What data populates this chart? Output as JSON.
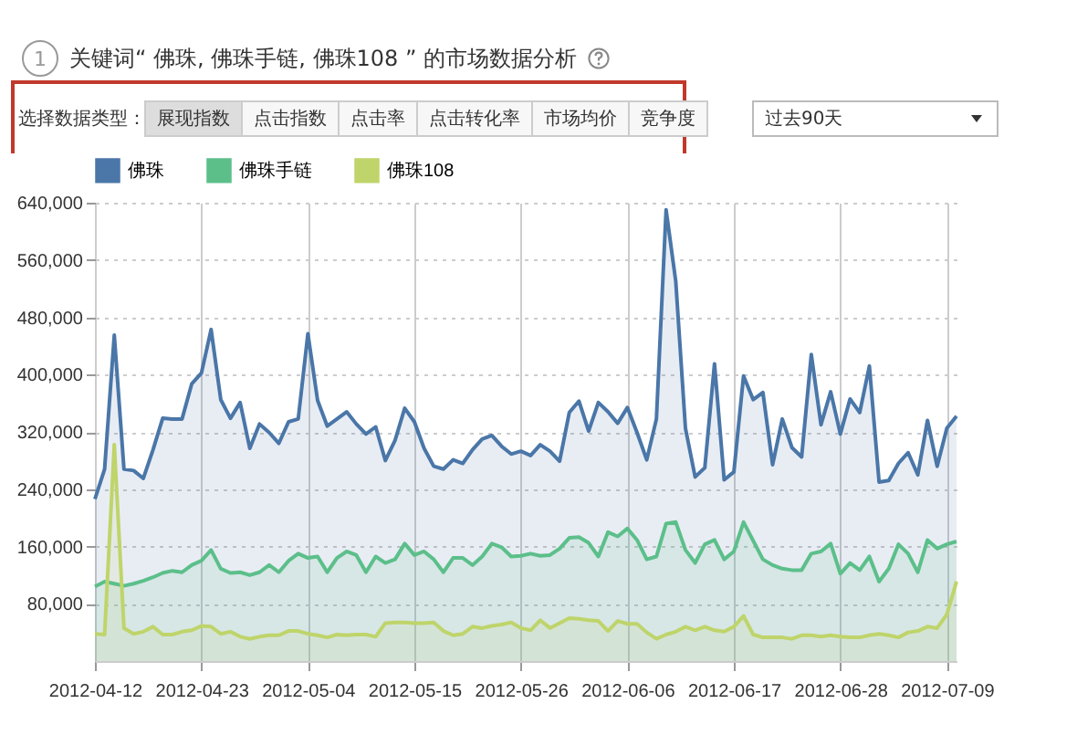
{
  "chart_data": {
    "type": "area",
    "title": "关键词“ 佛珠, 佛珠手链, 佛珠108 ” 的市场数据分析",
    "annotations": [
      "1",
      "选择数据类型：",
      "展现指数",
      "点击指数",
      "点击率",
      "点击转化率",
      "市场均价",
      "竞争度",
      "过去90天"
    ],
    "x": [
      "2012-04-12",
      "2012-04-13",
      "2012-04-14",
      "2012-04-15",
      "2012-04-16",
      "2012-04-17",
      "2012-04-18",
      "2012-04-19",
      "2012-04-20",
      "2012-04-21",
      "2012-04-22",
      "2012-04-23",
      "2012-04-24",
      "2012-04-25",
      "2012-04-26",
      "2012-04-27",
      "2012-04-28",
      "2012-04-29",
      "2012-04-30",
      "2012-05-01",
      "2012-05-02",
      "2012-05-03",
      "2012-05-04",
      "2012-05-05",
      "2012-05-06",
      "2012-05-07",
      "2012-05-08",
      "2012-05-09",
      "2012-05-10",
      "2012-05-11",
      "2012-05-12",
      "2012-05-13",
      "2012-05-14",
      "2012-05-15",
      "2012-05-16",
      "2012-05-17",
      "2012-05-18",
      "2012-05-19",
      "2012-05-20",
      "2012-05-21",
      "2012-05-22",
      "2012-05-23",
      "2012-05-24",
      "2012-05-25",
      "2012-05-26",
      "2012-05-27",
      "2012-05-28",
      "2012-05-29",
      "2012-05-30",
      "2012-05-31",
      "2012-06-01",
      "2012-06-02",
      "2012-06-03",
      "2012-06-04",
      "2012-06-05",
      "2012-06-06",
      "2012-06-07",
      "2012-06-08",
      "2012-06-09",
      "2012-06-10",
      "2012-06-11",
      "2012-06-12",
      "2012-06-13",
      "2012-06-14",
      "2012-06-15",
      "2012-06-16",
      "2012-06-17",
      "2012-06-18",
      "2012-06-19",
      "2012-06-20",
      "2012-06-21",
      "2012-06-22",
      "2012-06-23",
      "2012-06-24",
      "2012-06-25",
      "2012-06-26",
      "2012-06-27",
      "2012-06-28",
      "2012-06-29",
      "2012-06-30",
      "2012-07-01",
      "2012-07-02",
      "2012-07-03",
      "2012-07-04",
      "2012-07-05",
      "2012-07-06",
      "2012-07-07",
      "2012-07-08",
      "2012-07-09",
      "2012-07-10"
    ],
    "series": [
      {
        "name": "佛珠",
        "color": "#4a76a8",
        "values": [
          226000,
          268000,
          455000,
          268000,
          266000,
          255000,
          295000,
          339000,
          338000,
          338000,
          387000,
          402000,
          463000,
          365000,
          339000,
          361000,
          297000,
          331000,
          319000,
          304000,
          334000,
          338000,
          457000,
          364000,
          328000,
          338000,
          348000,
          331000,
          317000,
          327000,
          280000,
          308000,
          353000,
          334000,
          297000,
          272000,
          268000,
          281000,
          276000,
          295000,
          310000,
          315000,
          300000,
          289000,
          293000,
          287000,
          302000,
          293000,
          279000,
          347000,
          363000,
          321000,
          361000,
          348000,
          332000,
          354000,
          319000,
          281000,
          338000,
          630000,
          530000,
          325000,
          257000,
          270000,
          415000,
          253000,
          264000,
          398000,
          365000,
          375000,
          274000,
          338000,
          298000,
          285000,
          428000,
          330000,
          376000,
          317000,
          366000,
          347000,
          412000,
          250000,
          252000,
          276000,
          291000,
          260000,
          336000,
          272000,
          325000,
          342000
        ]
      },
      {
        "name": "佛珠手链",
        "color": "#5cbf8a",
        "values": [
          104000,
          111000,
          108000,
          105000,
          108000,
          112000,
          117000,
          123000,
          126000,
          124000,
          134000,
          140000,
          155000,
          129000,
          123000,
          124000,
          120000,
          124000,
          134000,
          124000,
          140000,
          150000,
          144000,
          146000,
          124000,
          144000,
          153000,
          148000,
          124000,
          146000,
          137000,
          142000,
          164000,
          148000,
          153000,
          142000,
          124000,
          144000,
          144000,
          134000,
          146000,
          164000,
          159000,
          146000,
          147000,
          150000,
          147000,
          148000,
          157000,
          172000,
          173000,
          165000,
          146000,
          180000,
          174000,
          185000,
          169000,
          142000,
          146000,
          192000,
          194000,
          155000,
          137000,
          163000,
          169000,
          142000,
          153000,
          194000,
          168000,
          142000,
          134000,
          129000,
          127000,
          127000,
          150000,
          153000,
          164000,
          122000,
          137000,
          127000,
          146000,
          111000,
          129000,
          163000,
          150000,
          124000,
          169000,
          157000,
          163000,
          167000
        ]
      },
      {
        "name": "佛珠108",
        "color": "#bfd46a",
        "values": [
          38000,
          37000,
          302000,
          46000,
          38000,
          41000,
          48000,
          37000,
          37000,
          41000,
          43000,
          49000,
          48000,
          38000,
          41000,
          34000,
          31000,
          34000,
          36000,
          36000,
          42000,
          42000,
          38000,
          36000,
          33000,
          37000,
          36000,
          37000,
          37000,
          34000,
          53000,
          54000,
          54000,
          53000,
          53000,
          54000,
          42000,
          36000,
          38000,
          48000,
          46000,
          49000,
          51000,
          54000,
          46000,
          43000,
          57000,
          46000,
          53000,
          60000,
          59000,
          57000,
          56000,
          42000,
          56000,
          52000,
          52000,
          40000,
          31000,
          37000,
          41000,
          48000,
          43000,
          48000,
          43000,
          41000,
          48000,
          63000,
          37000,
          33000,
          33000,
          33000,
          31000,
          36000,
          36000,
          34000,
          36000,
          34000,
          33000,
          33000,
          36000,
          38000,
          36000,
          33000,
          40000,
          42000,
          48000,
          46000,
          65000,
          111000
        ]
      }
    ],
    "xlim": [
      "2012-04-12",
      "2012-07-10"
    ],
    "xticks": [
      "2012-04-12",
      "2012-04-23",
      "2012-05-04",
      "2012-05-15",
      "2012-05-26",
      "2012-06-06",
      "2012-06-17",
      "2012-06-28",
      "2012-07-09"
    ],
    "ylim": [
      0,
      640000
    ],
    "yticks": [
      {
        "value": 80000,
        "label": "80,000"
      },
      {
        "value": 160000,
        "label": "160,000"
      },
      {
        "value": 240000,
        "label": "240,000"
      },
      {
        "value": 320000,
        "label": "320,000"
      },
      {
        "value": 400000,
        "label": "400,000"
      },
      {
        "value": 480000,
        "label": "480,000"
      },
      {
        "value": 560000,
        "label": "560,000"
      },
      {
        "value": 640000,
        "label": "640,000"
      }
    ],
    "grid": true,
    "legend": "top left",
    "marker": "none"
  }
}
